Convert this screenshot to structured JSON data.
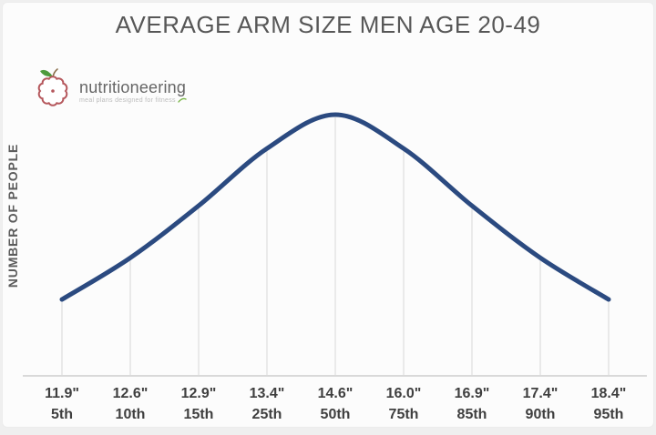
{
  "page": {
    "title": "AVERAGE ARM SIZE MEN AGE 20-49"
  },
  "logo": {
    "name": "nutritioneering",
    "tagline": "meal plans designed for fitness",
    "apple_outline_color": "#b5575c",
    "leaf_color": "#4e9a3c"
  },
  "chart_data": {
    "type": "line",
    "subtype": "bell-curve-distribution",
    "title": "AVERAGE ARM SIZE MEN AGE 20-49",
    "xlabel": "",
    "ylabel": "NUMBER OF PEOPLE",
    "legend_position": "none",
    "grid": "vertical drop lines from curve to x-axis at each category",
    "line_color": "#2b4a80",
    "axis_color": "#d9d9d9",
    "dropline_color": "#e3e3e3",
    "categories": [
      {
        "arm_size": "11.9\"",
        "percentile": "5th"
      },
      {
        "arm_size": "12.6\"",
        "percentile": "10th"
      },
      {
        "arm_size": "12.9\"",
        "percentile": "15th"
      },
      {
        "arm_size": "13.4\"",
        "percentile": "25th"
      },
      {
        "arm_size": "14.6\"",
        "percentile": "50th"
      },
      {
        "arm_size": "16.0\"",
        "percentile": "75th"
      },
      {
        "arm_size": "16.9\"",
        "percentile": "85th"
      },
      {
        "arm_size": "17.4\"",
        "percentile": "90th"
      },
      {
        "arm_size": "18.4\"",
        "percentile": "95th"
      }
    ],
    "arm_sizes_inches": [
      11.9,
      12.6,
      12.9,
      13.4,
      14.6,
      16.0,
      16.9,
      17.4,
      18.4
    ],
    "percentiles": [
      5,
      10,
      15,
      25,
      50,
      75,
      85,
      90,
      95
    ],
    "series": [
      {
        "name": "NUMBER OF PEOPLE",
        "values_relative_density": [
          0.29,
          0.45,
          0.65,
          0.87,
          1.0,
          0.87,
          0.65,
          0.45,
          0.29
        ]
      }
    ],
    "ylim": [
      0,
      1
    ],
    "y_axis_ticks": "none (unlabeled density axis)"
  }
}
